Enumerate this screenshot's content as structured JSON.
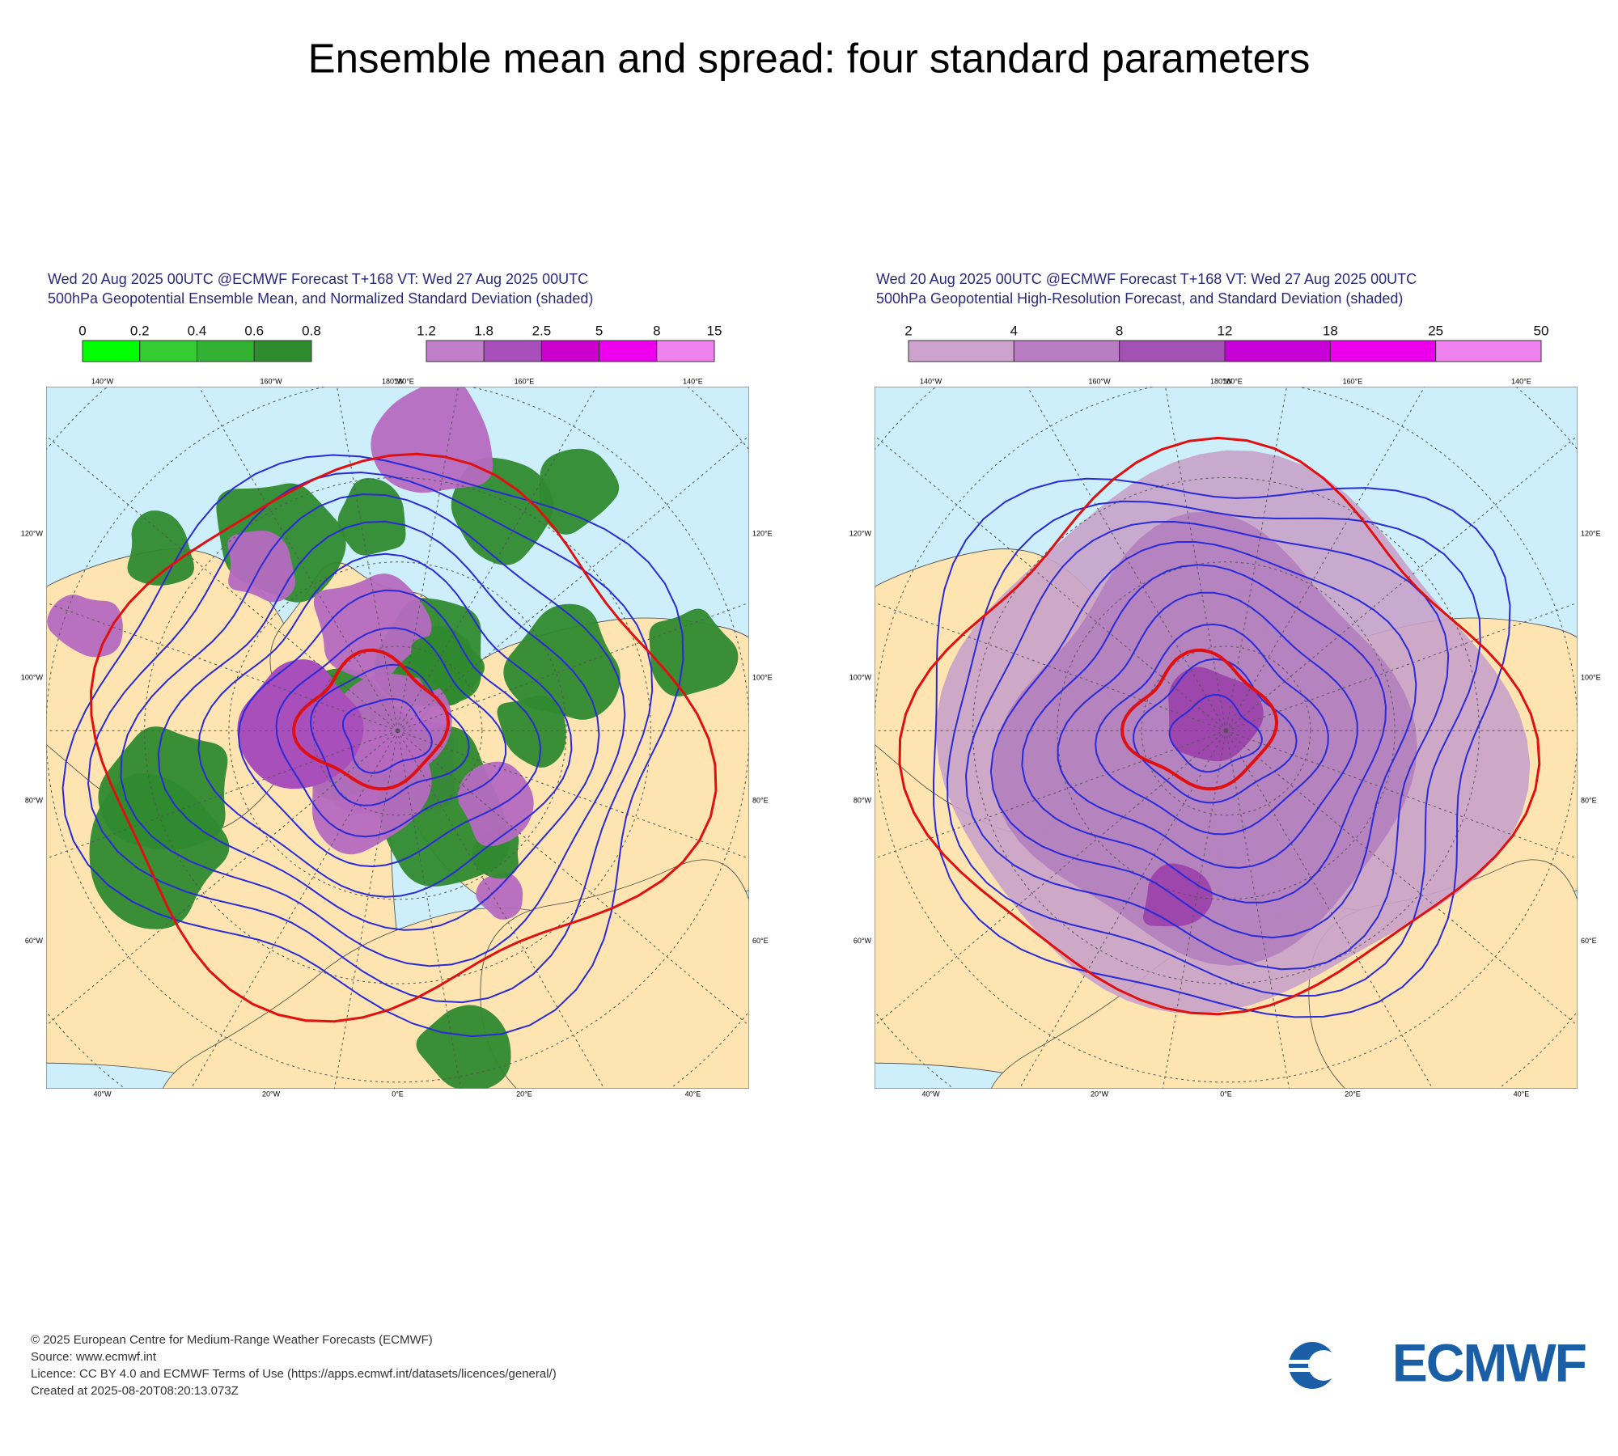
{
  "title": "Ensemble mean and spread: four standard parameters",
  "panels": [
    {
      "header": [
        "Wed 20 Aug 2025 00UTC @ECMWF Forecast T+168 VT: Wed 27 Aug 2025 00UTC",
        "500hPa Geopotential Ensemble Mean, and Normalized Standard Deviation (shaded)"
      ],
      "colorbars": [
        {
          "labels": [
            "0",
            "0.2",
            "0.4",
            "0.6",
            "0.8"
          ]
        },
        {
          "labels": [
            "1.2",
            "1.8",
            "2.5",
            "5",
            "8",
            "15"
          ]
        }
      ],
      "top_lon": [
        "140°W",
        "160°W",
        "180°W",
        "180°E",
        "160°E",
        "140°E"
      ],
      "bottom_lon": [
        "40°W",
        "20°W",
        "0°E",
        "20°E",
        "40°E"
      ],
      "left_lat": [
        "120°W",
        "100°W",
        "80°W",
        "60°W"
      ],
      "right_lat": [
        "120°E",
        "100°E",
        "80°E",
        "60°E"
      ]
    },
    {
      "header": [
        "Wed 20 Aug 2025 00UTC @ECMWF Forecast T+168 VT: Wed 27 Aug 2025 00UTC",
        "500hPa Geopotential High-Resolution Forecast, and Standard Deviation (shaded)"
      ],
      "colorbars": [
        {
          "labels": [
            "2",
            "4",
            "8",
            "12",
            "18",
            "25",
            "50"
          ]
        }
      ],
      "top_lon": [
        "140°W",
        "160°W",
        "180°W",
        "180°E",
        "160°E",
        "140°E"
      ],
      "bottom_lon": [
        "40°W",
        "20°W",
        "0°E",
        "20°E",
        "40°E"
      ],
      "left_lat": [
        "120°W",
        "100°W",
        "80°W",
        "60°W"
      ],
      "right_lat": [
        "120°E",
        "100°E",
        "80°E",
        "60°E"
      ]
    }
  ],
  "footer": [
    "© 2025 European Centre for Medium-Range Weather Forecasts (ECMWF)",
    "Source: www.ecmwf.int",
    "Licence: CC BY 4.0 and ECMWF Terms of Use (https://apps.ecmwf.int/datasets/licences/general/)",
    "Created at 2025-08-20T08:20:13.073Z"
  ],
  "logo": "ECMWF"
}
